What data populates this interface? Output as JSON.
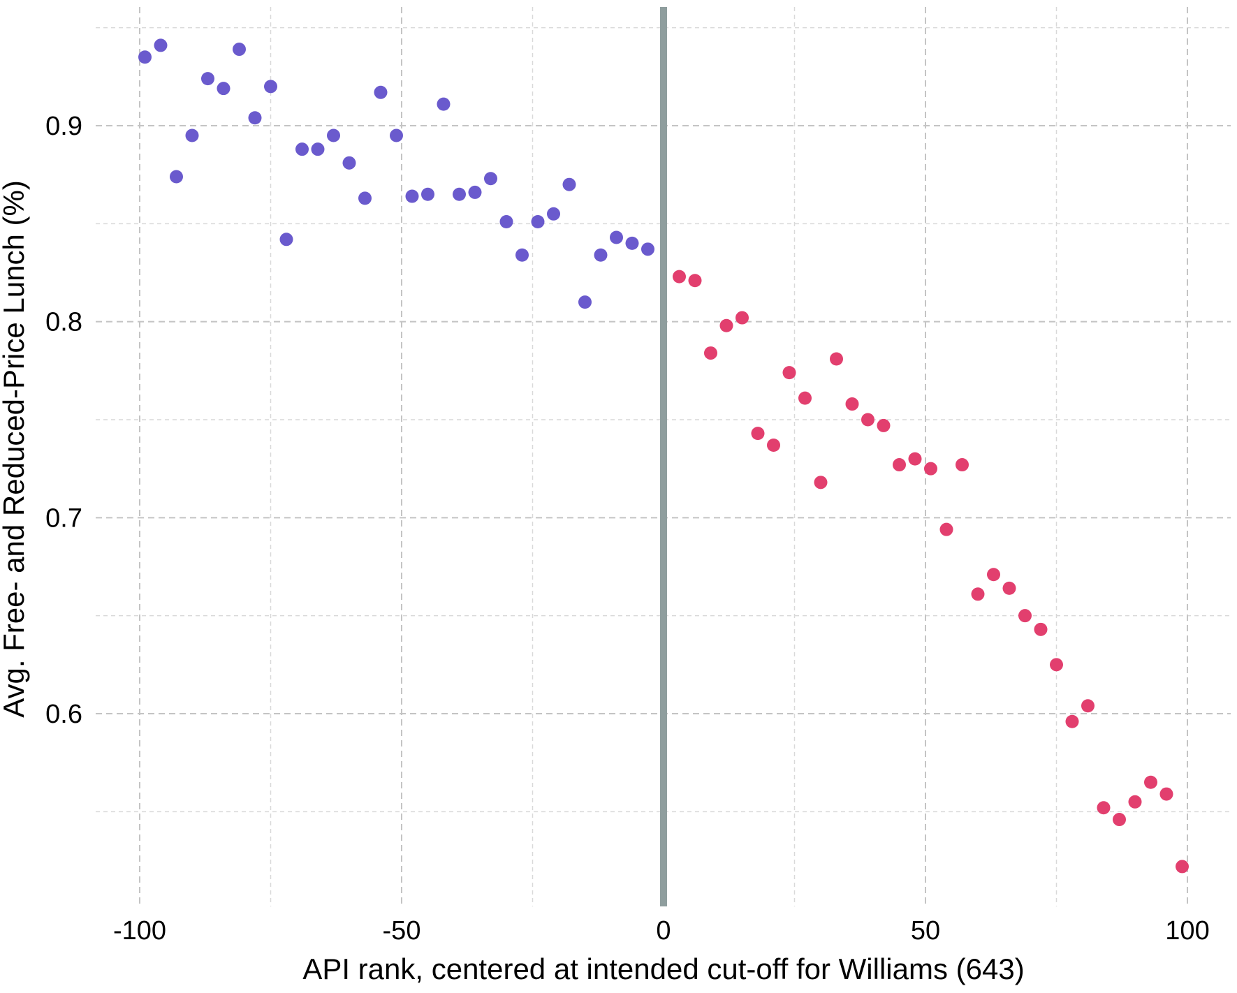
{
  "chart_data": {
    "type": "scatter",
    "title": "",
    "xlabel": "API rank, centered at intended cut-off for Williams (643)",
    "ylabel": "Avg. Free- and Reduced-Price Lunch (%)",
    "xlim": [
      -105,
      108
    ],
    "ylim": [
      0.5,
      0.96
    ],
    "x_ticks": [
      -100,
      -50,
      0,
      50,
      100
    ],
    "x_tick_labels": [
      "-100",
      "-50",
      "0",
      "50",
      "100"
    ],
    "y_ticks": [
      0.6,
      0.7,
      0.8,
      0.9
    ],
    "y_tick_labels": [
      "0.6",
      "0.7",
      "0.8",
      "0.9"
    ],
    "x_minor_grid": [
      -75,
      -25,
      25,
      75
    ],
    "y_minor_grid": [
      0.55,
      0.65,
      0.75,
      0.85,
      0.95
    ],
    "grid": true,
    "cutoff_line": {
      "x": 0,
      "color": "#8f9e9e"
    },
    "series": [
      {
        "color": "#6a5acd",
        "points": [
          [
            -99,
            0.935
          ],
          [
            -96,
            0.941
          ],
          [
            -93,
            0.874
          ],
          [
            -90,
            0.895
          ],
          [
            -87,
            0.924
          ],
          [
            -84,
            0.919
          ],
          [
            -81,
            0.939
          ],
          [
            -78,
            0.904
          ],
          [
            -75,
            0.92
          ],
          [
            -72,
            0.842
          ],
          [
            -69,
            0.888
          ],
          [
            -66,
            0.888
          ],
          [
            -63,
            0.895
          ],
          [
            -60,
            0.881
          ],
          [
            -57,
            0.863
          ],
          [
            -54,
            0.917
          ],
          [
            -51,
            0.895
          ],
          [
            -48,
            0.864
          ],
          [
            -45,
            0.865
          ],
          [
            -42,
            0.911
          ],
          [
            -39,
            0.865
          ],
          [
            -36,
            0.866
          ],
          [
            -33,
            0.873
          ],
          [
            -30,
            0.851
          ],
          [
            -27,
            0.834
          ],
          [
            -24,
            0.851
          ],
          [
            -21,
            0.855
          ],
          [
            -18,
            0.87
          ],
          [
            -15,
            0.81
          ],
          [
            -12,
            0.834
          ],
          [
            -9,
            0.843
          ],
          [
            -6,
            0.84
          ],
          [
            -3,
            0.837
          ]
        ]
      },
      {
        "color": "#e23f6e",
        "points": [
          [
            3,
            0.823
          ],
          [
            6,
            0.821
          ],
          [
            9,
            0.784
          ],
          [
            12,
            0.798
          ],
          [
            15,
            0.802
          ],
          [
            18,
            0.743
          ],
          [
            21,
            0.737
          ],
          [
            24,
            0.774
          ],
          [
            27,
            0.761
          ],
          [
            30,
            0.718
          ],
          [
            33,
            0.781
          ],
          [
            36,
            0.758
          ],
          [
            39,
            0.75
          ],
          [
            42,
            0.747
          ],
          [
            45,
            0.727
          ],
          [
            48,
            0.73
          ],
          [
            51,
            0.725
          ],
          [
            54,
            0.694
          ],
          [
            57,
            0.727
          ],
          [
            60,
            0.661
          ],
          [
            63,
            0.671
          ],
          [
            66,
            0.664
          ],
          [
            69,
            0.65
          ],
          [
            72,
            0.643
          ],
          [
            75,
            0.625
          ],
          [
            78,
            0.596
          ],
          [
            81,
            0.604
          ],
          [
            84,
            0.552
          ],
          [
            87,
            0.546
          ],
          [
            90,
            0.555
          ],
          [
            93,
            0.565
          ],
          [
            96,
            0.559
          ],
          [
            99,
            0.522
          ]
        ]
      }
    ]
  }
}
